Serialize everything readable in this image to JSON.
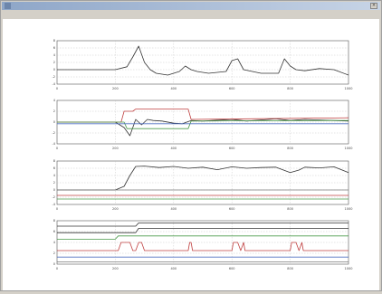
{
  "window": {
    "title": "",
    "menu": [
      "",
      "",
      "",
      ""
    ],
    "close_label": "×"
  },
  "colors": {
    "trace": "#333333",
    "red": "#c04040",
    "green": "#4a9a4a",
    "blue": "#5070c0",
    "gray": "#7a7a7a",
    "grid": "#bfbfbf",
    "frame": "#555555"
  },
  "chart_data": [
    {
      "type": "line",
      "title": "",
      "ylabel": "",
      "xlim": [
        0,
        1000
      ],
      "ylim": [
        -4,
        8
      ],
      "xticks": [
        0,
        200,
        400,
        600,
        800,
        1000
      ],
      "yticks": [
        -4,
        -2,
        0,
        2,
        4,
        6,
        8
      ],
      "grid": true,
      "series": [
        {
          "color": "trace",
          "x": [
            0,
            100,
            200,
            240,
            260,
            280,
            300,
            320,
            340,
            380,
            420,
            440,
            460,
            480,
            520,
            580,
            600,
            620,
            640,
            700,
            760,
            780,
            800,
            820,
            850,
            900,
            950,
            1000
          ],
          "y": [
            0,
            0,
            0,
            0.8,
            3.5,
            6.5,
            2,
            0,
            -1,
            -1.5,
            -0.5,
            1,
            0,
            -0.5,
            -1,
            -0.5,
            2.5,
            3,
            0,
            -1,
            -1,
            3,
            1,
            0,
            -0.3,
            0.3,
            0,
            -1.5
          ]
        }
      ]
    },
    {
      "type": "line",
      "ylabel": "",
      "xlim": [
        0,
        1000
      ],
      "ylim": [
        -4,
        4
      ],
      "xticks": [
        0,
        200,
        400,
        600,
        800,
        1000
      ],
      "yticks": [
        -4,
        -2,
        0,
        2,
        4
      ],
      "grid": true,
      "series": [
        {
          "color": "trace",
          "x": [
            0,
            200,
            230,
            250,
            270,
            290,
            310,
            330,
            360,
            400,
            430,
            460,
            500,
            600,
            650,
            700,
            750,
            800,
            850,
            900,
            950,
            1000
          ],
          "y": [
            0,
            0,
            -1,
            -2.5,
            0.5,
            -0.5,
            0.5,
            0.3,
            0.2,
            -0.2,
            -0.3,
            0.3,
            0.2,
            0.5,
            0.2,
            0.4,
            0.6,
            0.3,
            0.5,
            0.4,
            0.3,
            0.2
          ]
        },
        {
          "color": "red",
          "x": [
            0,
            220,
            230,
            260,
            270,
            450,
            460,
            1000
          ],
          "y": [
            0,
            0,
            2,
            2,
            2.4,
            2.4,
            0.5,
            0.8
          ]
        },
        {
          "color": "green",
          "x": [
            0,
            230,
            240,
            450,
            460,
            1000
          ],
          "y": [
            0,
            0,
            -1.2,
            -1.2,
            0.2,
            0.3
          ]
        },
        {
          "color": "blue",
          "x": [
            0,
            1000
          ],
          "y": [
            -0.3,
            -0.3
          ]
        }
      ]
    },
    {
      "type": "line",
      "ylabel": "",
      "xlim": [
        0,
        1000
      ],
      "ylim": [
        -4,
        8
      ],
      "xticks": [
        0,
        200,
        400,
        600,
        800,
        1000
      ],
      "yticks": [
        -4,
        -2,
        0,
        2,
        4,
        6,
        8
      ],
      "grid": true,
      "series": [
        {
          "color": "trace",
          "x": [
            0,
            200,
            230,
            250,
            270,
            300,
            350,
            400,
            450,
            500,
            550,
            600,
            650,
            700,
            750,
            800,
            830,
            850,
            900,
            950,
            1000
          ],
          "y": [
            0,
            0,
            1,
            4,
            6.5,
            6.6,
            6.2,
            6.5,
            6.0,
            6.3,
            5.6,
            6.4,
            6.0,
            6.2,
            6.3,
            4.8,
            5.5,
            6.3,
            6.1,
            6.4,
            4.8
          ]
        },
        {
          "color": "gray",
          "x": [
            0,
            1000
          ],
          "y": [
            0,
            0
          ]
        },
        {
          "color": "red",
          "x": [
            0,
            1000
          ],
          "y": [
            -1.5,
            -1.5
          ]
        },
        {
          "color": "green",
          "x": [
            0,
            1000
          ],
          "y": [
            -2.5,
            -2.5
          ]
        }
      ]
    },
    {
      "type": "line",
      "ylabel": "",
      "xlim": [
        0,
        1000
      ],
      "ylim": [
        0,
        8
      ],
      "xticks": [
        0,
        200,
        400,
        600,
        800,
        1000
      ],
      "yticks": [
        0,
        2,
        4,
        6,
        8
      ],
      "grid": true,
      "series": [
        {
          "color": "trace",
          "x": [
            0,
            270,
            280,
            1000
          ],
          "y": [
            7,
            7,
            7.6,
            7.6
          ]
        },
        {
          "color": "trace",
          "x": [
            0,
            270,
            280,
            1000
          ],
          "y": [
            5.8,
            5.8,
            6.6,
            6.6
          ]
        },
        {
          "color": "green",
          "x": [
            0,
            200,
            210,
            1000
          ],
          "y": [
            4.6,
            4.6,
            5.2,
            5.2
          ]
        },
        {
          "color": "red",
          "x": [
            0,
            210,
            220,
            250,
            260,
            270,
            280,
            290,
            300,
            450,
            455,
            460,
            465,
            600,
            605,
            620,
            630,
            640,
            645,
            800,
            805,
            820,
            830,
            840,
            845,
            1000
          ],
          "y": [
            2.5,
            2.5,
            4,
            4,
            2.5,
            2.5,
            4,
            4,
            2.5,
            2.5,
            4,
            4,
            2.5,
            2.5,
            4,
            4,
            2.5,
            4,
            2.5,
            2.5,
            4,
            4,
            2.5,
            4,
            2.5,
            2.5
          ]
        },
        {
          "color": "blue",
          "x": [
            0,
            1000
          ],
          "y": [
            1.3,
            1.3
          ]
        },
        {
          "color": "gray",
          "x": [
            0,
            1000
          ],
          "y": [
            0.4,
            0.4
          ]
        }
      ]
    }
  ]
}
